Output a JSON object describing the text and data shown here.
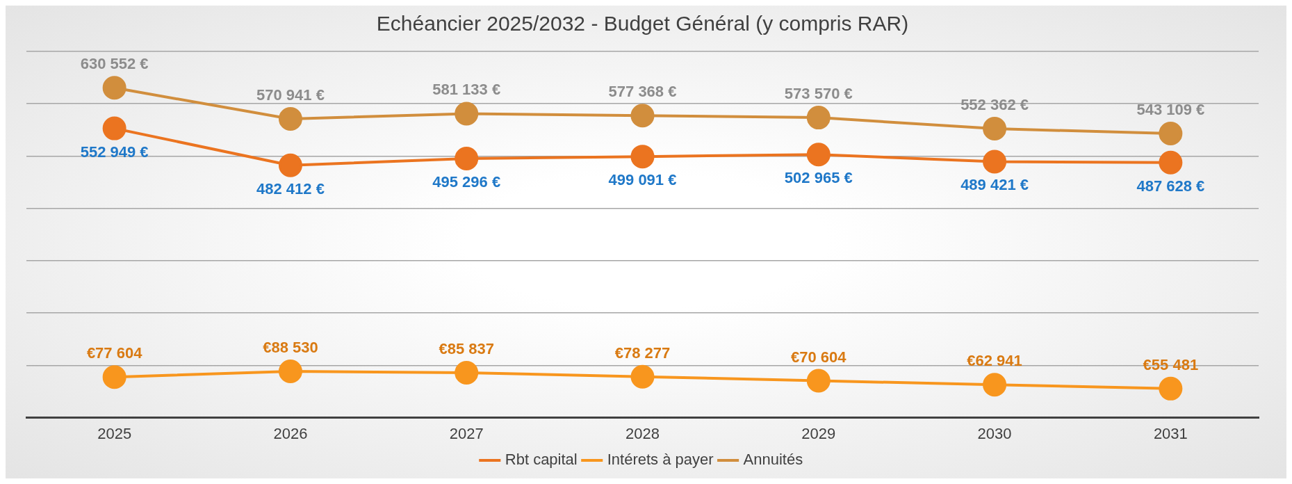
{
  "chart_data": {
    "type": "line",
    "title": "Echéancier 2025/2032 - Budget Général (y compris RAR)",
    "categories": [
      "2025",
      "2026",
      "2027",
      "2028",
      "2029",
      "2030",
      "2031"
    ],
    "series": [
      {
        "name": "Rbt capital",
        "color": "#eb7420",
        "values": [
          552949,
          482412,
          495296,
          499091,
          502965,
          489421,
          487628
        ],
        "value_labels": [
          "552 949 €",
          "482 412 €",
          "495 296 €",
          "499 091 €",
          "502 965 €",
          "489 421 €",
          "487 628 €"
        ]
      },
      {
        "name": "Intérets à payer",
        "color": "#f8961e",
        "values": [
          77604,
          88530,
          85837,
          78277,
          70604,
          62941,
          55481
        ],
        "value_labels": [
          "€77 604",
          "€88 530",
          "€85 837",
          "€78 277",
          "€70 604",
          "€62 941",
          "€55 481"
        ]
      },
      {
        "name": "Annuités",
        "color": "#d18e3d",
        "values": [
          630552,
          570941,
          581133,
          577368,
          573570,
          552362,
          543109
        ],
        "value_labels": [
          "630 552 €",
          "570 941 €",
          "581 133 €",
          "577 368 €",
          "573 570 €",
          "552 362 €",
          "543 109 €"
        ]
      }
    ],
    "ylim": [
      0,
      700000
    ],
    "yticks": [
      {
        "value": 0,
        "label": null
      },
      {
        "value": 100000,
        "label": null
      },
      {
        "value": 200000,
        "label": null
      },
      {
        "value": 300000,
        "label": null
      },
      {
        "value": 400000,
        "label": null
      },
      {
        "value": 500000,
        "label": null
      },
      {
        "value": 600000,
        "label": null
      },
      {
        "value": 700000,
        "label": null
      }
    ],
    "tick_labels": "x",
    "grid": "y",
    "legend": "bottom",
    "marker": "circle",
    "line_style": "solid"
  }
}
